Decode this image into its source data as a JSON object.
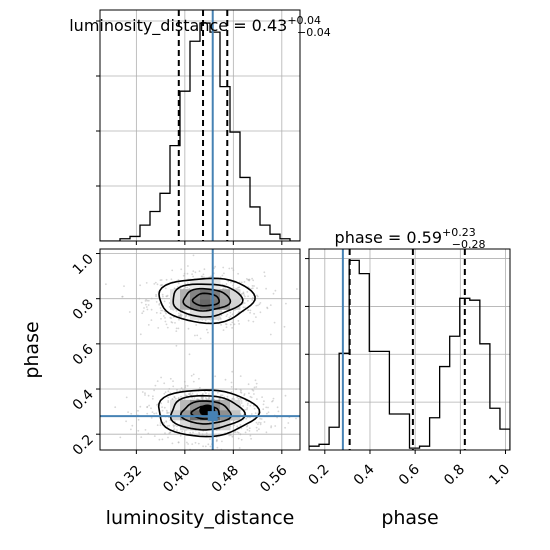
{
  "chart_data": [
    {
      "type": "histogram",
      "panel": "luminosity_distance-marginal",
      "title_main": "luminosity_distance = 0.43",
      "title_sup": "+0.04",
      "title_sub": "−0.04",
      "xlim": [
        0.26,
        0.59
      ],
      "bin_edges": [
        0.26,
        0.2765,
        0.293,
        0.3095,
        0.326,
        0.3425,
        0.359,
        0.3755,
        0.392,
        0.4085,
        0.425,
        0.4415,
        0.458,
        0.4745,
        0.491,
        0.5075,
        0.524,
        0.5405,
        0.557,
        0.5735,
        0.59
      ],
      "counts": [
        0,
        0,
        1,
        2,
        7,
        13,
        21,
        42,
        66,
        88,
        96,
        92,
        68,
        48,
        28,
        15,
        7,
        3,
        1,
        0
      ],
      "quantiles": [
        0.39,
        0.43,
        0.47
      ],
      "truth": 0.446,
      "grid": true
    },
    {
      "type": "heatmap",
      "panel": "2d-posterior",
      "xlabel": "luminosity_distance",
      "ylabel": "phase",
      "xlim": [
        0.26,
        0.59
      ],
      "ylim": [
        0.13,
        1.02
      ],
      "xticks": [
        "0.32",
        "0.40",
        "0.48",
        "0.56"
      ],
      "xtick_values": [
        0.32,
        0.4,
        0.48,
        0.56
      ],
      "yticks": [
        "0.2",
        "0.4",
        "0.6",
        "0.8",
        "1.0"
      ],
      "ytick_values": [
        0.2,
        0.4,
        0.6,
        0.8,
        1.0
      ],
      "modes": [
        {
          "x": 0.435,
          "y": 0.795,
          "sx": 0.038,
          "sy": 0.048
        },
        {
          "x": 0.435,
          "y": 0.295,
          "sx": 0.04,
          "sy": 0.05
        }
      ],
      "contour_levels": [
        0.12,
        0.32,
        0.6,
        0.85
      ],
      "truth": {
        "x": 0.446,
        "y": 0.28
      },
      "grid": true
    },
    {
      "type": "histogram",
      "panel": "phase-marginal",
      "title_main": "phase = 0.59",
      "title_sup": "+0.23",
      "title_sub": "−0.28",
      "xlabel": "phase",
      "xlim": [
        0.13,
        1.02
      ],
      "xticks": [
        "0.2",
        "0.4",
        "0.6",
        "0.8",
        "1.0"
      ],
      "xtick_values": [
        0.2,
        0.4,
        0.6,
        0.8,
        1.0
      ],
      "bin_edges": [
        0.13,
        0.1745,
        0.219,
        0.2635,
        0.308,
        0.3525,
        0.397,
        0.4415,
        0.486,
        0.5305,
        0.575,
        0.6195,
        0.664,
        0.7085,
        0.753,
        0.7975,
        0.842,
        0.8865,
        0.931,
        0.9755,
        1.02
      ],
      "counts": [
        2,
        3,
        12,
        51,
        100,
        93,
        52,
        52,
        19,
        19,
        1,
        2,
        17,
        44,
        60,
        80,
        79,
        56,
        22,
        11
      ],
      "quantiles": [
        0.31,
        0.59,
        0.82
      ],
      "truth": 0.28,
      "grid": true
    }
  ],
  "colors": {
    "truth": "#4682b4",
    "quantile": "#000000",
    "grid": "#b0b0b0",
    "hist": "#000000",
    "scatter": "#b4b4b4"
  }
}
